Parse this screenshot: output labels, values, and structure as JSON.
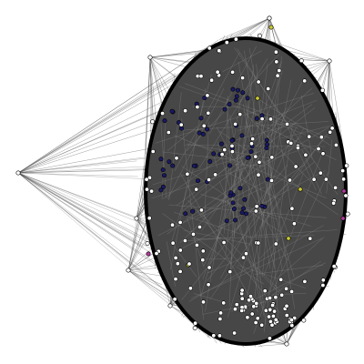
{
  "graph": {
    "background_color": "#ffffff",
    "edge_color": "#4a4a4a",
    "fill_color": "#474747",
    "outline_color": "#000000",
    "node_colors": {
      "default": "#ffffff",
      "group_a": "#1a1a66",
      "group_b": "#cccc33",
      "group_c": "#b03a9a"
    },
    "node_stroke": "#000000"
  }
}
